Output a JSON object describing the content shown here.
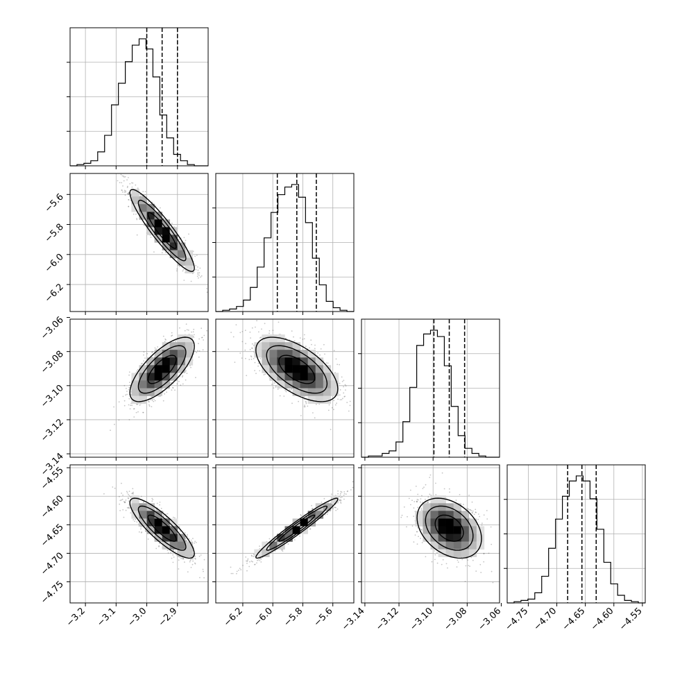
{
  "chart_data": {
    "type": "corner",
    "parameters": [
      {
        "range": [
          -3.25,
          -2.8
        ],
        "ticks": [
          "-3.2",
          "-3.1",
          "-3.0",
          "-2.9"
        ],
        "tick_values": [
          -3.2,
          -3.1,
          -3.0,
          -2.9
        ],
        "quantiles": [
          -3.0,
          -2.95,
          -2.9
        ],
        "mean": -2.95,
        "sd": 0.05
      },
      {
        "range": [
          -6.38,
          -5.46
        ],
        "ticks": [
          "-6.2",
          "-6.0",
          "-5.8",
          "-5.6"
        ],
        "tick_values": [
          -6.2,
          -6.0,
          -5.8,
          -5.6
        ],
        "quantiles": [
          -5.97,
          -5.84,
          -5.71
        ],
        "mean": -5.84,
        "sd": 0.13
      },
      {
        "range": [
          -3.142,
          -3.061
        ],
        "ticks": [
          "-3.14",
          "-3.12",
          "-3.10",
          "-3.08",
          "-3.06"
        ],
        "tick_values": [
          -3.14,
          -3.12,
          -3.1,
          -3.08,
          -3.06
        ],
        "quantiles": [
          -3.0995,
          -3.0905,
          -3.0815
        ],
        "mean": -3.0905,
        "sd": 0.009
      },
      {
        "range": [
          -4.787,
          -4.545
        ],
        "ticks": [
          "-4.75",
          "-4.70",
          "-4.65",
          "-4.60",
          "-4.55"
        ],
        "tick_values": [
          -4.75,
          -4.7,
          -4.65,
          -4.6,
          -4.55
        ],
        "quantiles": [
          -4.681,
          -4.656,
          -4.631
        ],
        "mean": -4.656,
        "sd": 0.025
      }
    ],
    "correlations": [
      {
        "i": 1,
        "j": 0,
        "rho": -0.92
      },
      {
        "i": 2,
        "j": 0,
        "rho": 0.72
      },
      {
        "i": 2,
        "j": 1,
        "rho": -0.6
      },
      {
        "i": 3,
        "j": 0,
        "rho": -0.85
      },
      {
        "i": 3,
        "j": 1,
        "rho": 0.97
      },
      {
        "i": 3,
        "j": 2,
        "rho": -0.35
      }
    ],
    "histograms": [
      [
        0,
        1,
        2,
        4,
        11,
        24,
        48,
        65,
        82,
        95,
        100,
        92,
        70,
        40,
        22,
        9,
        4,
        1,
        0,
        0
      ],
      [
        0,
        1,
        2,
        4,
        9,
        19,
        35,
        58,
        78,
        92,
        98,
        100,
        90,
        70,
        42,
        21,
        8,
        3,
        1,
        0
      ],
      [
        0,
        1,
        1,
        3,
        5,
        12,
        28,
        55,
        88,
        97,
        100,
        95,
        72,
        40,
        17,
        7,
        3,
        1,
        0,
        0
      ],
      [
        0,
        1,
        2,
        3,
        8,
        21,
        43,
        66,
        84,
        96,
        100,
        96,
        82,
        58,
        32,
        15,
        6,
        2,
        1,
        0
      ]
    ],
    "grid": true
  },
  "colors": {
    "axis": "#000000",
    "grid": "#b0b0b0",
    "scatter": "#555555",
    "contour": "#000000"
  }
}
